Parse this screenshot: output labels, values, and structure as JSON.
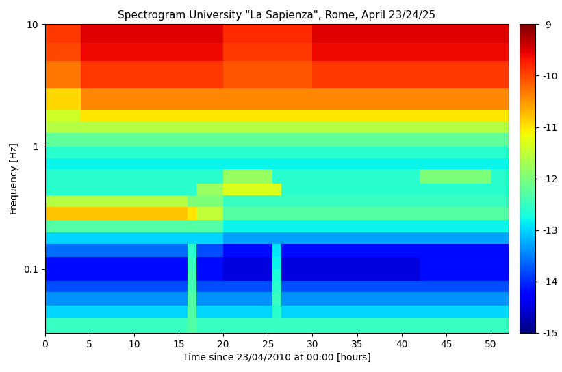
{
  "chart_data": {
    "type": "spectrogram",
    "title": "Spectrogram University \"La Sapienza\", Rome, April 23/24/25",
    "x_label": "Time since 23/04/2010 at 00:00 [hours]",
    "y_label": "Frequency [Hz]",
    "log": "y",
    "grid": false,
    "xlim": [
      0,
      52
    ],
    "xticks": [
      0,
      5,
      10,
      15,
      20,
      25,
      30,
      35,
      40,
      45,
      50
    ],
    "ylim": [
      0.03,
      10
    ],
    "yticks": [
      0.1,
      1,
      10
    ],
    "time_edges": [
      0,
      4,
      8,
      12,
      16,
      17,
      20,
      24,
      25.5,
      26.5,
      30,
      34,
      38,
      42,
      46,
      50,
      52
    ],
    "frequency_edges": [
      0.03,
      0.04,
      0.05,
      0.065,
      0.08,
      0.1,
      0.125,
      0.16,
      0.2,
      0.25,
      0.32,
      0.4,
      0.5,
      0.65,
      0.8,
      1,
      1.3,
      1.6,
      2,
      3,
      5,
      7,
      10
    ],
    "cells": [
      [
        -12.5,
        -12.5,
        -12.5,
        -12.5,
        -12.3,
        -12.5,
        -12.5,
        -12.5,
        -12.5,
        -12.5,
        -12.5,
        -12.5,
        -12.5,
        -12.5,
        -12.5,
        -12.5
      ],
      [
        -13.0,
        -13.0,
        -13.0,
        -13.0,
        -12.3,
        -13.0,
        -13.0,
        -13.0,
        -12.6,
        -13.0,
        -13.0,
        -13.0,
        -13.0,
        -13.0,
        -13.0,
        -13.0
      ],
      [
        -13.4,
        -13.4,
        -13.4,
        -13.4,
        -12.3,
        -13.4,
        -13.4,
        -13.4,
        -12.5,
        -13.4,
        -13.4,
        -13.4,
        -13.4,
        -13.4,
        -13.4,
        -13.4
      ],
      [
        -13.8,
        -13.8,
        -13.8,
        -13.8,
        -12.4,
        -13.8,
        -13.8,
        -13.8,
        -12.6,
        -13.8,
        -13.8,
        -13.8,
        -13.8,
        -13.8,
        -13.8,
        -13.8
      ],
      [
        -14.2,
        -14.2,
        -14.2,
        -14.2,
        -12.4,
        -14.2,
        -14.5,
        -14.5,
        -12.7,
        -14.5,
        -14.5,
        -14.5,
        -14.5,
        -14.2,
        -14.2,
        -14.2
      ],
      [
        -14.2,
        -14.2,
        -14.2,
        -14.2,
        -12.5,
        -14.2,
        -14.5,
        -14.5,
        -12.8,
        -14.5,
        -14.5,
        -14.5,
        -14.5,
        -14.2,
        -14.2,
        -14.2
      ],
      [
        -13.6,
        -13.6,
        -13.6,
        -13.6,
        -12.6,
        -13.8,
        -14.2,
        -14.2,
        -12.9,
        -14.2,
        -14.2,
        -14.2,
        -14.2,
        -14.2,
        -14.2,
        -14.2
      ],
      [
        -13.0,
        -13.0,
        -13.0,
        -13.0,
        -13.0,
        -13.0,
        -13.3,
        -13.3,
        -13.3,
        -13.3,
        -13.3,
        -13.3,
        -13.3,
        -13.3,
        -13.3,
        -13.3
      ],
      [
        -12.3,
        -12.3,
        -12.3,
        -12.3,
        -12.3,
        -12.3,
        -12.8,
        -12.8,
        -12.8,
        -12.8,
        -12.8,
        -12.8,
        -12.8,
        -12.8,
        -12.8,
        -12.8
      ],
      [
        -10.8,
        -10.8,
        -10.8,
        -10.8,
        -11.0,
        -11.5,
        -12.3,
        -12.3,
        -12.3,
        -12.3,
        -12.3,
        -12.3,
        -12.3,
        -12.3,
        -12.3,
        -12.3
      ],
      [
        -11.6,
        -11.6,
        -11.6,
        -11.6,
        -12.0,
        -12.0,
        -12.5,
        -12.5,
        -12.5,
        -12.5,
        -12.5,
        -12.5,
        -12.5,
        -12.5,
        -12.5,
        -12.5
      ],
      [
        -12.6,
        -12.6,
        -12.6,
        -12.6,
        -12.6,
        -11.8,
        -11.3,
        -11.3,
        -11.3,
        -12.6,
        -12.6,
        -12.6,
        -12.6,
        -12.6,
        -12.6,
        -12.6
      ],
      [
        -12.6,
        -12.6,
        -12.6,
        -12.6,
        -12.6,
        -12.6,
        -11.8,
        -11.8,
        -12.6,
        -12.6,
        -12.6,
        -12.6,
        -12.6,
        -12.0,
        -12.0,
        -12.6
      ],
      [
        -12.8,
        -12.8,
        -12.8,
        -12.8,
        -12.8,
        -12.8,
        -12.8,
        -12.8,
        -12.8,
        -12.8,
        -12.8,
        -12.8,
        -12.8,
        -12.8,
        -12.8,
        -12.8
      ],
      [
        -12.6,
        -12.6,
        -12.6,
        -12.6,
        -12.6,
        -12.6,
        -12.6,
        -12.6,
        -12.6,
        -12.6,
        -12.6,
        -12.6,
        -12.6,
        -12.6,
        -12.6,
        -12.6
      ],
      [
        -12.2,
        -12.2,
        -12.2,
        -12.2,
        -12.2,
        -12.2,
        -12.2,
        -12.2,
        -12.2,
        -12.2,
        -12.2,
        -12.2,
        -12.2,
        -12.2,
        -12.2,
        -12.2
      ],
      [
        -11.6,
        -11.6,
        -11.6,
        -11.6,
        -11.6,
        -11.6,
        -11.6,
        -11.6,
        -11.6,
        -11.6,
        -11.6,
        -11.6,
        -11.6,
        -11.6,
        -11.6,
        -11.6
      ],
      [
        -11.4,
        -11.0,
        -11.0,
        -11.0,
        -11.0,
        -11.0,
        -11.0,
        -11.0,
        -11.0,
        -11.0,
        -11.0,
        -11.0,
        -11.0,
        -11.0,
        -11.0,
        -11.0
      ],
      [
        -10.9,
        -10.4,
        -10.4,
        -10.4,
        -10.4,
        -10.4,
        -10.4,
        -10.4,
        -10.4,
        -10.4,
        -10.4,
        -10.4,
        -10.4,
        -10.4,
        -10.4,
        -10.4
      ],
      [
        -10.3,
        -9.9,
        -9.9,
        -9.9,
        -9.9,
        -9.9,
        -10.1,
        -10.1,
        -10.1,
        -10.1,
        -9.9,
        -9.9,
        -9.9,
        -9.9,
        -9.9,
        -9.9
      ],
      [
        -10.0,
        -9.6,
        -9.6,
        -9.6,
        -9.6,
        -9.6,
        -9.9,
        -9.9,
        -9.9,
        -9.9,
        -9.6,
        -9.6,
        -9.6,
        -9.6,
        -9.6,
        -9.6
      ],
      [
        -9.9,
        -9.5,
        -9.5,
        -9.5,
        -9.5,
        -9.5,
        -9.8,
        -9.8,
        -9.8,
        -9.8,
        -9.5,
        -9.5,
        -9.5,
        -9.5,
        -9.5,
        -9.5
      ]
    ],
    "colorbar_range": [
      -15,
      -9
    ],
    "colorbar_ticks": [
      -9,
      -10,
      -11,
      -12,
      -13,
      -14,
      -15
    ]
  }
}
